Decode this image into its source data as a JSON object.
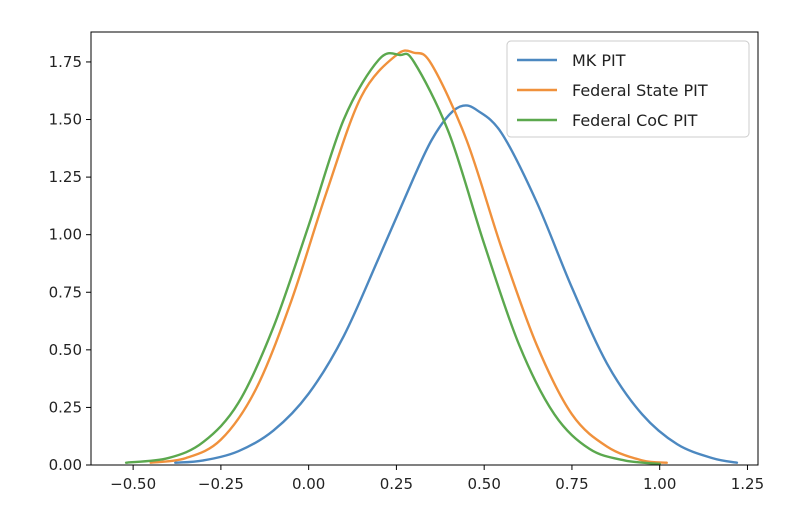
{
  "chart_data": {
    "type": "line",
    "title": "",
    "xlabel": "",
    "ylabel": "",
    "xlim": [
      -0.62,
      1.28
    ],
    "ylim": [
      0,
      1.88
    ],
    "grid": false,
    "legend_position": "top-right",
    "x_ticks": [
      {
        "value": -0.5,
        "label": "−0.50"
      },
      {
        "value": -0.25,
        "label": "−0.25"
      },
      {
        "value": 0.0,
        "label": "0.00"
      },
      {
        "value": 0.25,
        "label": "0.25"
      },
      {
        "value": 0.5,
        "label": "0.50"
      },
      {
        "value": 0.75,
        "label": "0.75"
      },
      {
        "value": 1.0,
        "label": "1.00"
      },
      {
        "value": 1.25,
        "label": "1.25"
      }
    ],
    "y_ticks": [
      {
        "value": 0.0,
        "label": "0.00"
      },
      {
        "value": 0.25,
        "label": "0.25"
      },
      {
        "value": 0.5,
        "label": "0.50"
      },
      {
        "value": 0.75,
        "label": "0.75"
      },
      {
        "value": 1.0,
        "label": "1.00"
      },
      {
        "value": 1.25,
        "label": "1.25"
      },
      {
        "value": 1.5,
        "label": "1.50"
      },
      {
        "value": 1.75,
        "label": "1.75"
      }
    ],
    "series": [
      {
        "name": "MK PIT",
        "color": "#4c88c0",
        "x": [
          -0.38,
          -0.3,
          -0.2,
          -0.1,
          0.0,
          0.1,
          0.2,
          0.3,
          0.35,
          0.4,
          0.44,
          0.48,
          0.55,
          0.65,
          0.75,
          0.85,
          0.95,
          1.05,
          1.15,
          1.22
        ],
        "y": [
          0.01,
          0.02,
          0.06,
          0.15,
          0.31,
          0.56,
          0.9,
          1.25,
          1.41,
          1.52,
          1.56,
          1.54,
          1.44,
          1.14,
          0.77,
          0.44,
          0.22,
          0.09,
          0.03,
          0.01
        ]
      },
      {
        "name": "Federal State PIT",
        "color": "#f0913c",
        "x": [
          -0.45,
          -0.35,
          -0.25,
          -0.15,
          -0.05,
          0.05,
          0.15,
          0.25,
          0.3,
          0.35,
          0.45,
          0.55,
          0.65,
          0.75,
          0.85,
          0.95,
          1.02
        ],
        "y": [
          0.01,
          0.03,
          0.11,
          0.33,
          0.71,
          1.18,
          1.6,
          1.78,
          1.79,
          1.74,
          1.41,
          0.94,
          0.52,
          0.22,
          0.08,
          0.02,
          0.01
        ]
      },
      {
        "name": "Federal CoC PIT",
        "color": "#5ba84e",
        "x": [
          -0.52,
          -0.4,
          -0.3,
          -0.2,
          -0.1,
          0.0,
          0.1,
          0.2,
          0.26,
          0.3,
          0.4,
          0.5,
          0.6,
          0.7,
          0.8,
          0.9,
          1.0
        ],
        "y": [
          0.01,
          0.03,
          0.1,
          0.27,
          0.6,
          1.04,
          1.5,
          1.76,
          1.78,
          1.75,
          1.44,
          0.96,
          0.52,
          0.22,
          0.07,
          0.02,
          0.005
        ]
      }
    ]
  }
}
